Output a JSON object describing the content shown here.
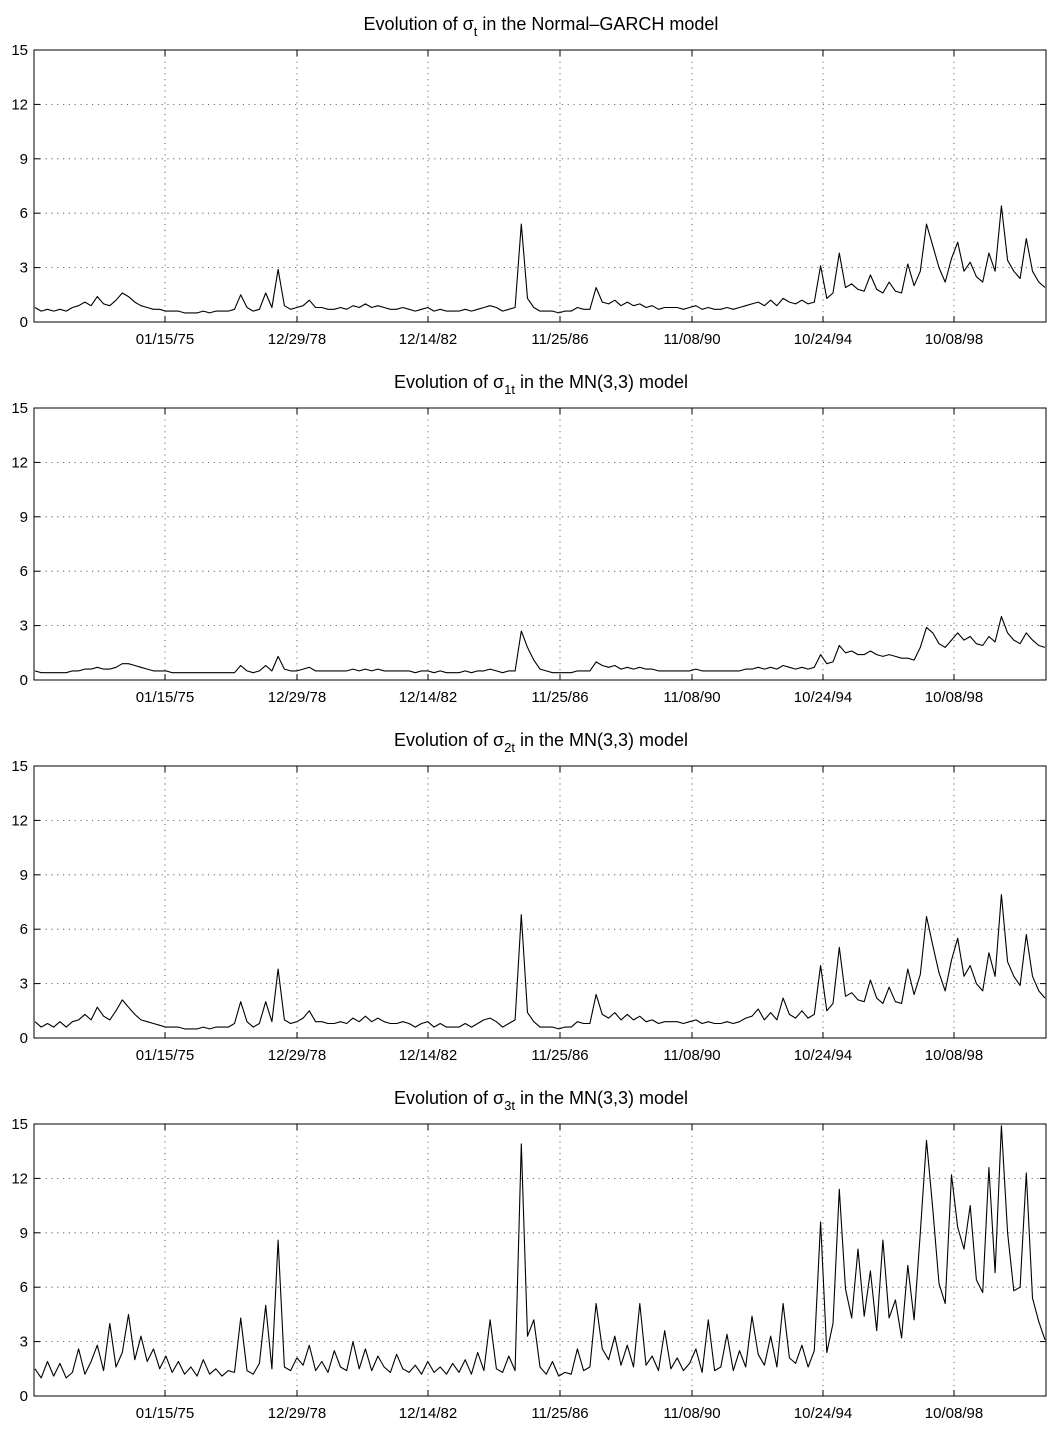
{
  "chart_data": [
    {
      "type": "line",
      "title": {
        "prefix": "Evolution of σ",
        "subscript": "t",
        "suffix": " in the Normal–GARCH model"
      },
      "x_ticks": [
        "01/15/75",
        "12/29/78",
        "12/14/82",
        "11/25/86",
        "11/08/90",
        "10/24/94",
        "10/08/98"
      ],
      "y_ticks": [
        "0",
        "3",
        "6",
        "9",
        "12",
        "15"
      ],
      "ylim": [
        0,
        15
      ],
      "grid": true,
      "series": [
        {
          "values": [
            0.8,
            0.6,
            0.7,
            0.6,
            0.7,
            0.6,
            0.8,
            0.9,
            1.1,
            0.9,
            1.4,
            1.0,
            0.9,
            1.2,
            1.6,
            1.4,
            1.1,
            0.9,
            0.8,
            0.7,
            0.7,
            0.6,
            0.6,
            0.6,
            0.5,
            0.5,
            0.5,
            0.6,
            0.5,
            0.6,
            0.6,
            0.6,
            0.7,
            1.5,
            0.8,
            0.6,
            0.7,
            1.6,
            0.8,
            2.9,
            0.9,
            0.7,
            0.8,
            0.9,
            1.2,
            0.8,
            0.8,
            0.7,
            0.7,
            0.8,
            0.7,
            0.9,
            0.8,
            1.0,
            0.8,
            0.9,
            0.8,
            0.7,
            0.7,
            0.8,
            0.7,
            0.6,
            0.7,
            0.8,
            0.6,
            0.7,
            0.6,
            0.6,
            0.6,
            0.7,
            0.6,
            0.7,
            0.8,
            0.9,
            0.8,
            0.6,
            0.7,
            0.8,
            5.4,
            1.3,
            0.8,
            0.6,
            0.6,
            0.6,
            0.5,
            0.6,
            0.6,
            0.8,
            0.7,
            0.7,
            1.9,
            1.1,
            1.0,
            1.2,
            0.9,
            1.1,
            0.9,
            1.0,
            0.8,
            0.9,
            0.7,
            0.8,
            0.8,
            0.8,
            0.7,
            0.8,
            0.9,
            0.7,
            0.8,
            0.7,
            0.7,
            0.8,
            0.7,
            0.8,
            0.9,
            1.0,
            1.1,
            0.9,
            1.2,
            0.9,
            1.3,
            1.1,
            1.0,
            1.2,
            1.0,
            1.1,
            3.1,
            1.3,
            1.6,
            3.8,
            1.9,
            2.1,
            1.8,
            1.7,
            2.6,
            1.8,
            1.6,
            2.2,
            1.7,
            1.6,
            3.2,
            2.0,
            2.8,
            5.4,
            4.2,
            3.0,
            2.2,
            3.5,
            4.4,
            2.8,
            3.3,
            2.5,
            2.2,
            3.8,
            2.8,
            6.4,
            3.4,
            2.8,
            2.4,
            4.6,
            2.8,
            2.2,
            1.9
          ]
        }
      ]
    },
    {
      "type": "line",
      "title": {
        "prefix": "Evolution of σ",
        "subscript": "1t",
        "suffix": " in the MN(3,3) model"
      },
      "x_ticks": [
        "01/15/75",
        "12/29/78",
        "12/14/82",
        "11/25/86",
        "11/08/90",
        "10/24/94",
        "10/08/98"
      ],
      "y_ticks": [
        "0",
        "3",
        "6",
        "9",
        "12",
        "15"
      ],
      "ylim": [
        0,
        15
      ],
      "grid": true,
      "series": [
        {
          "values": [
            0.5,
            0.4,
            0.4,
            0.4,
            0.4,
            0.4,
            0.5,
            0.5,
            0.6,
            0.6,
            0.7,
            0.6,
            0.6,
            0.7,
            0.9,
            0.9,
            0.8,
            0.7,
            0.6,
            0.5,
            0.5,
            0.5,
            0.4,
            0.4,
            0.4,
            0.4,
            0.4,
            0.4,
            0.4,
            0.4,
            0.4,
            0.4,
            0.4,
            0.8,
            0.5,
            0.4,
            0.5,
            0.8,
            0.5,
            1.3,
            0.6,
            0.5,
            0.5,
            0.6,
            0.7,
            0.5,
            0.5,
            0.5,
            0.5,
            0.5,
            0.5,
            0.6,
            0.5,
            0.6,
            0.5,
            0.6,
            0.5,
            0.5,
            0.5,
            0.5,
            0.5,
            0.4,
            0.5,
            0.5,
            0.4,
            0.5,
            0.4,
            0.4,
            0.4,
            0.5,
            0.4,
            0.5,
            0.5,
            0.6,
            0.5,
            0.4,
            0.5,
            0.5,
            2.7,
            1.8,
            1.1,
            0.6,
            0.5,
            0.4,
            0.4,
            0.4,
            0.4,
            0.5,
            0.5,
            0.5,
            1.0,
            0.8,
            0.7,
            0.8,
            0.6,
            0.7,
            0.6,
            0.7,
            0.6,
            0.6,
            0.5,
            0.5,
            0.5,
            0.5,
            0.5,
            0.5,
            0.6,
            0.5,
            0.5,
            0.5,
            0.5,
            0.5,
            0.5,
            0.5,
            0.6,
            0.6,
            0.7,
            0.6,
            0.7,
            0.6,
            0.8,
            0.7,
            0.6,
            0.7,
            0.6,
            0.7,
            1.4,
            0.9,
            1.0,
            1.9,
            1.5,
            1.6,
            1.4,
            1.4,
            1.6,
            1.4,
            1.3,
            1.4,
            1.3,
            1.2,
            1.2,
            1.1,
            1.8,
            2.9,
            2.6,
            2.0,
            1.8,
            2.2,
            2.6,
            2.2,
            2.4,
            2.0,
            1.9,
            2.4,
            2.1,
            3.5,
            2.6,
            2.2,
            2.0,
            2.6,
            2.2,
            1.9,
            1.8
          ]
        }
      ]
    },
    {
      "type": "line",
      "title": {
        "prefix": "Evolution of σ",
        "subscript": "2t",
        "suffix": " in the MN(3,3) model"
      },
      "x_ticks": [
        "01/15/75",
        "12/29/78",
        "12/14/82",
        "11/25/86",
        "11/08/90",
        "10/24/94",
        "10/08/98"
      ],
      "y_ticks": [
        "0",
        "3",
        "6",
        "9",
        "12",
        "15"
      ],
      "ylim": [
        0,
        15
      ],
      "grid": true,
      "series": [
        {
          "values": [
            0.9,
            0.6,
            0.8,
            0.6,
            0.9,
            0.6,
            0.9,
            1.0,
            1.3,
            1.0,
            1.7,
            1.2,
            1.0,
            1.5,
            2.1,
            1.7,
            1.3,
            1.0,
            0.9,
            0.8,
            0.7,
            0.6,
            0.6,
            0.6,
            0.5,
            0.5,
            0.5,
            0.6,
            0.5,
            0.6,
            0.6,
            0.6,
            0.8,
            2.0,
            0.9,
            0.6,
            0.8,
            2.0,
            0.9,
            3.8,
            1.0,
            0.8,
            0.9,
            1.1,
            1.5,
            0.9,
            0.9,
            0.8,
            0.8,
            0.9,
            0.8,
            1.1,
            0.9,
            1.2,
            0.9,
            1.1,
            0.9,
            0.8,
            0.8,
            0.9,
            0.8,
            0.6,
            0.8,
            0.9,
            0.6,
            0.8,
            0.6,
            0.6,
            0.6,
            0.8,
            0.6,
            0.8,
            1.0,
            1.1,
            0.9,
            0.6,
            0.8,
            1.0,
            6.8,
            1.4,
            0.9,
            0.6,
            0.6,
            0.6,
            0.5,
            0.6,
            0.6,
            0.9,
            0.8,
            0.8,
            2.4,
            1.3,
            1.1,
            1.4,
            1.0,
            1.3,
            1.0,
            1.2,
            0.9,
            1.0,
            0.8,
            0.9,
            0.9,
            0.9,
            0.8,
            0.9,
            1.0,
            0.8,
            0.9,
            0.8,
            0.8,
            0.9,
            0.8,
            0.9,
            1.1,
            1.2,
            1.6,
            1.0,
            1.4,
            1.0,
            2.2,
            1.3,
            1.1,
            1.5,
            1.1,
            1.3,
            4.0,
            1.5,
            1.9,
            5.0,
            2.3,
            2.5,
            2.1,
            2.0,
            3.2,
            2.2,
            1.9,
            2.8,
            2.0,
            1.9,
            3.8,
            2.4,
            3.5,
            6.7,
            5.1,
            3.6,
            2.6,
            4.3,
            5.5,
            3.4,
            4.0,
            3.0,
            2.6,
            4.7,
            3.4,
            7.9,
            4.2,
            3.4,
            2.9,
            5.7,
            3.4,
            2.6,
            2.2
          ]
        }
      ]
    },
    {
      "type": "line",
      "title": {
        "prefix": "Evolution of σ",
        "subscript": "3t",
        "suffix": " in the MN(3,3) model"
      },
      "x_ticks": [
        "01/15/75",
        "12/29/78",
        "12/14/82",
        "11/25/86",
        "11/08/90",
        "10/24/94",
        "10/08/98"
      ],
      "y_ticks": [
        "0",
        "3",
        "6",
        "9",
        "12",
        "15"
      ],
      "ylim": [
        0,
        15
      ],
      "grid": true,
      "series": [
        {
          "values": [
            1.5,
            1.0,
            1.9,
            1.1,
            1.8,
            1.0,
            1.3,
            2.6,
            1.2,
            1.9,
            2.8,
            1.4,
            4.0,
            1.6,
            2.4,
            4.5,
            2.0,
            3.3,
            1.9,
            2.6,
            1.5,
            2.2,
            1.3,
            1.9,
            1.2,
            1.6,
            1.1,
            2.0,
            1.2,
            1.5,
            1.1,
            1.4,
            1.3,
            4.3,
            1.4,
            1.2,
            1.8,
            5.0,
            1.5,
            8.6,
            1.6,
            1.4,
            2.1,
            1.7,
            2.8,
            1.4,
            1.9,
            1.3,
            2.5,
            1.6,
            1.4,
            3.0,
            1.5,
            2.6,
            1.4,
            2.2,
            1.6,
            1.3,
            2.3,
            1.5,
            1.3,
            1.7,
            1.2,
            1.9,
            1.3,
            1.6,
            1.2,
            1.8,
            1.3,
            2.0,
            1.2,
            2.4,
            1.4,
            4.2,
            1.5,
            1.3,
            2.2,
            1.4,
            13.9,
            3.3,
            4.2,
            1.6,
            1.2,
            1.9,
            1.1,
            1.3,
            1.2,
            2.6,
            1.4,
            1.6,
            5.1,
            2.6,
            2.0,
            3.3,
            1.7,
            2.8,
            1.6,
            5.1,
            1.7,
            2.2,
            1.4,
            3.6,
            1.5,
            2.1,
            1.4,
            1.8,
            2.6,
            1.3,
            4.2,
            1.4,
            1.6,
            3.4,
            1.4,
            2.5,
            1.6,
            4.4,
            2.3,
            1.7,
            3.3,
            1.6,
            5.1,
            2.1,
            1.8,
            2.8,
            1.6,
            2.5,
            9.6,
            2.4,
            4.0,
            11.4,
            5.9,
            4.3,
            8.1,
            4.4,
            6.9,
            3.6,
            8.6,
            4.3,
            5.3,
            3.2,
            7.2,
            4.2,
            9.0,
            14.1,
            10.3,
            6.2,
            5.1,
            12.2,
            9.3,
            8.1,
            10.5,
            6.4,
            5.7,
            12.6,
            6.8,
            14.9,
            9.0,
            5.8,
            6.0,
            12.3,
            5.4,
            4.1,
            3.1
          ]
        }
      ]
    }
  ]
}
